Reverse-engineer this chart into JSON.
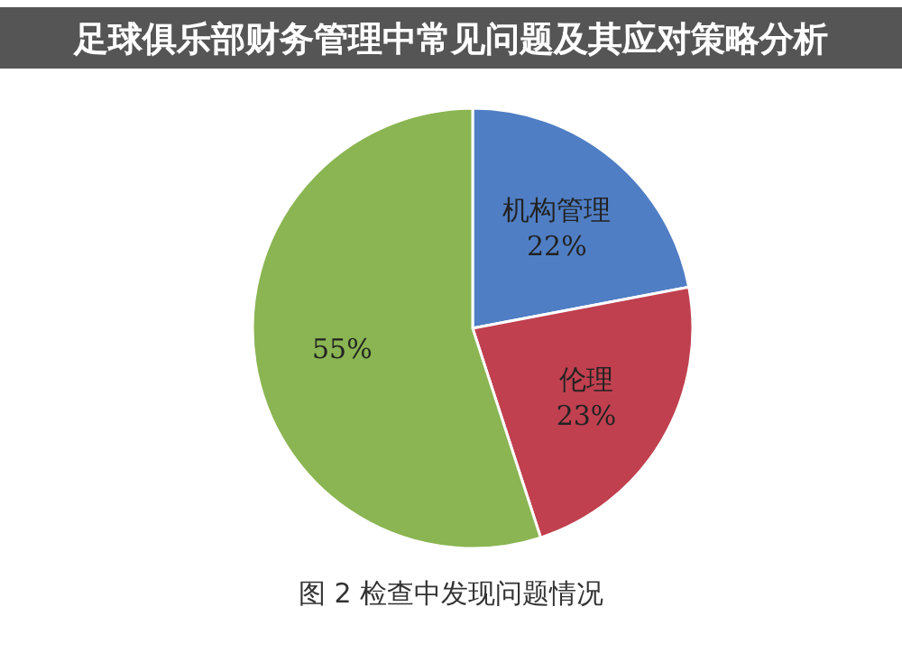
{
  "chart_data": {
    "type": "pie",
    "title": "足球俱乐部财务管理中常见问题及其应对策略分析",
    "categories": [
      "机构管理",
      "伦理",
      null
    ],
    "values": [
      22,
      23,
      55
    ],
    "value_labels": [
      "22%",
      "23%",
      "55%"
    ],
    "colors": [
      "#4f7ec4",
      "#c0404f",
      "#8ab552"
    ],
    "annotations": [
      "图 2 检查中发现问题情况"
    ]
  }
}
